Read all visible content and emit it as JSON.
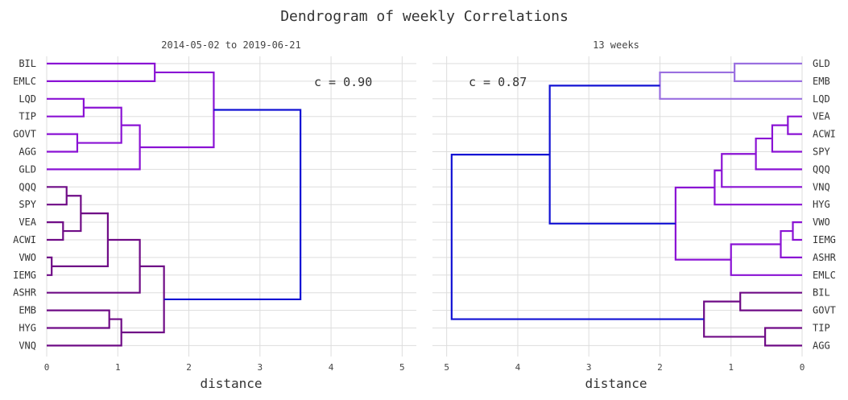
{
  "title": "Dendrogram of weekly Correlations",
  "colors": {
    "deep": "#1212d4",
    "violet": "#8a12d4",
    "plum": "#6f0b86",
    "lavender": "#9a6fe0"
  },
  "chart_data": [
    {
      "type": "dendrogram",
      "subtitle": "2014-05-02 to 2019-06-21",
      "xlabel": "distance",
      "annotation": "c = 0.90",
      "orientation": "left",
      "xlim": [
        0,
        5.2
      ],
      "xticks": [
        0,
        1,
        2,
        3,
        4,
        5
      ],
      "leaves": [
        "BIL",
        "EMLC",
        "LQD",
        "TIP",
        "GOVT",
        "AGG",
        "GLD",
        "QQQ",
        "SPY",
        "VEA",
        "ACWI",
        "VWO",
        "IEMG",
        "ASHR",
        "EMB",
        "HYG",
        "VNQ"
      ],
      "links": [
        {
          "a": "BIL",
          "b": "EMLC",
          "d": 1.52,
          "color": "violet"
        },
        {
          "a": "LQD",
          "b": "TIP",
          "d": 0.52,
          "color": "violet"
        },
        {
          "a": "GOVT",
          "b": "AGG",
          "d": 0.43,
          "color": "violet"
        },
        {
          "a": 1,
          "b": 2,
          "d": 1.05,
          "color": "violet"
        },
        {
          "a": 3,
          "b": "GLD",
          "d": 1.31,
          "color": "violet"
        },
        {
          "a": 0,
          "b": 4,
          "d": 2.35,
          "color": "violet"
        },
        {
          "a": "QQQ",
          "b": "SPY",
          "d": 0.28,
          "color": "plum"
        },
        {
          "a": "VEA",
          "b": "ACWI",
          "d": 0.23,
          "color": "plum"
        },
        {
          "a": 6,
          "b": 7,
          "d": 0.48,
          "color": "plum"
        },
        {
          "a": "VWO",
          "b": "IEMG",
          "d": 0.07,
          "color": "plum"
        },
        {
          "a": 8,
          "b": 9,
          "d": 0.86,
          "color": "plum"
        },
        {
          "a": 10,
          "b": "ASHR",
          "d": 1.31,
          "color": "plum"
        },
        {
          "a": "EMB",
          "b": "HYG",
          "d": 0.88,
          "color": "plum"
        },
        {
          "a": 12,
          "b": "VNQ",
          "d": 1.05,
          "color": "plum"
        },
        {
          "a": 11,
          "b": 13,
          "d": 1.65,
          "color": "plum"
        },
        {
          "a": 5,
          "b": 14,
          "d": 3.57,
          "color": "deep"
        }
      ]
    },
    {
      "type": "dendrogram",
      "subtitle": "13 weeks",
      "xlabel": "distance",
      "annotation": "c = 0.87",
      "orientation": "right",
      "xlim": [
        5.2,
        0
      ],
      "xticks": [
        5,
        4,
        3,
        2,
        1,
        0
      ],
      "leaves": [
        "GLD",
        "EMB",
        "LQD",
        "VEA",
        "ACWI",
        "SPY",
        "QQQ",
        "VNQ",
        "HYG",
        "VWO",
        "IEMG",
        "ASHR",
        "EMLC",
        "BIL",
        "GOVT",
        "TIP",
        "AGG"
      ],
      "links": [
        {
          "a": "GLD",
          "b": "EMB",
          "d": 0.95,
          "color": "lavender"
        },
        {
          "a": 0,
          "b": "LQD",
          "d": 2.0,
          "color": "lavender"
        },
        {
          "a": "VEA",
          "b": "ACWI",
          "d": 0.2,
          "color": "violet"
        },
        {
          "a": 2,
          "b": "SPY",
          "d": 0.42,
          "color": "violet"
        },
        {
          "a": 3,
          "b": "QQQ",
          "d": 0.65,
          "color": "violet"
        },
        {
          "a": 4,
          "b": "VNQ",
          "d": 1.13,
          "color": "violet"
        },
        {
          "a": 5,
          "b": "HYG",
          "d": 1.23,
          "color": "violet"
        },
        {
          "a": "VWO",
          "b": "IEMG",
          "d": 0.13,
          "color": "violet"
        },
        {
          "a": 7,
          "b": "ASHR",
          "d": 0.3,
          "color": "violet"
        },
        {
          "a": 8,
          "b": "EMLC",
          "d": 1.0,
          "color": "violet"
        },
        {
          "a": 6,
          "b": 9,
          "d": 1.78,
          "color": "violet"
        },
        {
          "a": 1,
          "b": 10,
          "d": 3.55,
          "color": "deep"
        },
        {
          "a": "BIL",
          "b": "GOVT",
          "d": 0.87,
          "color": "plum"
        },
        {
          "a": "TIP",
          "b": "AGG",
          "d": 0.52,
          "color": "plum"
        },
        {
          "a": 12,
          "b": 13,
          "d": 1.38,
          "color": "plum"
        },
        {
          "a": 11,
          "b": 14,
          "d": 4.93,
          "color": "deep"
        }
      ]
    }
  ]
}
